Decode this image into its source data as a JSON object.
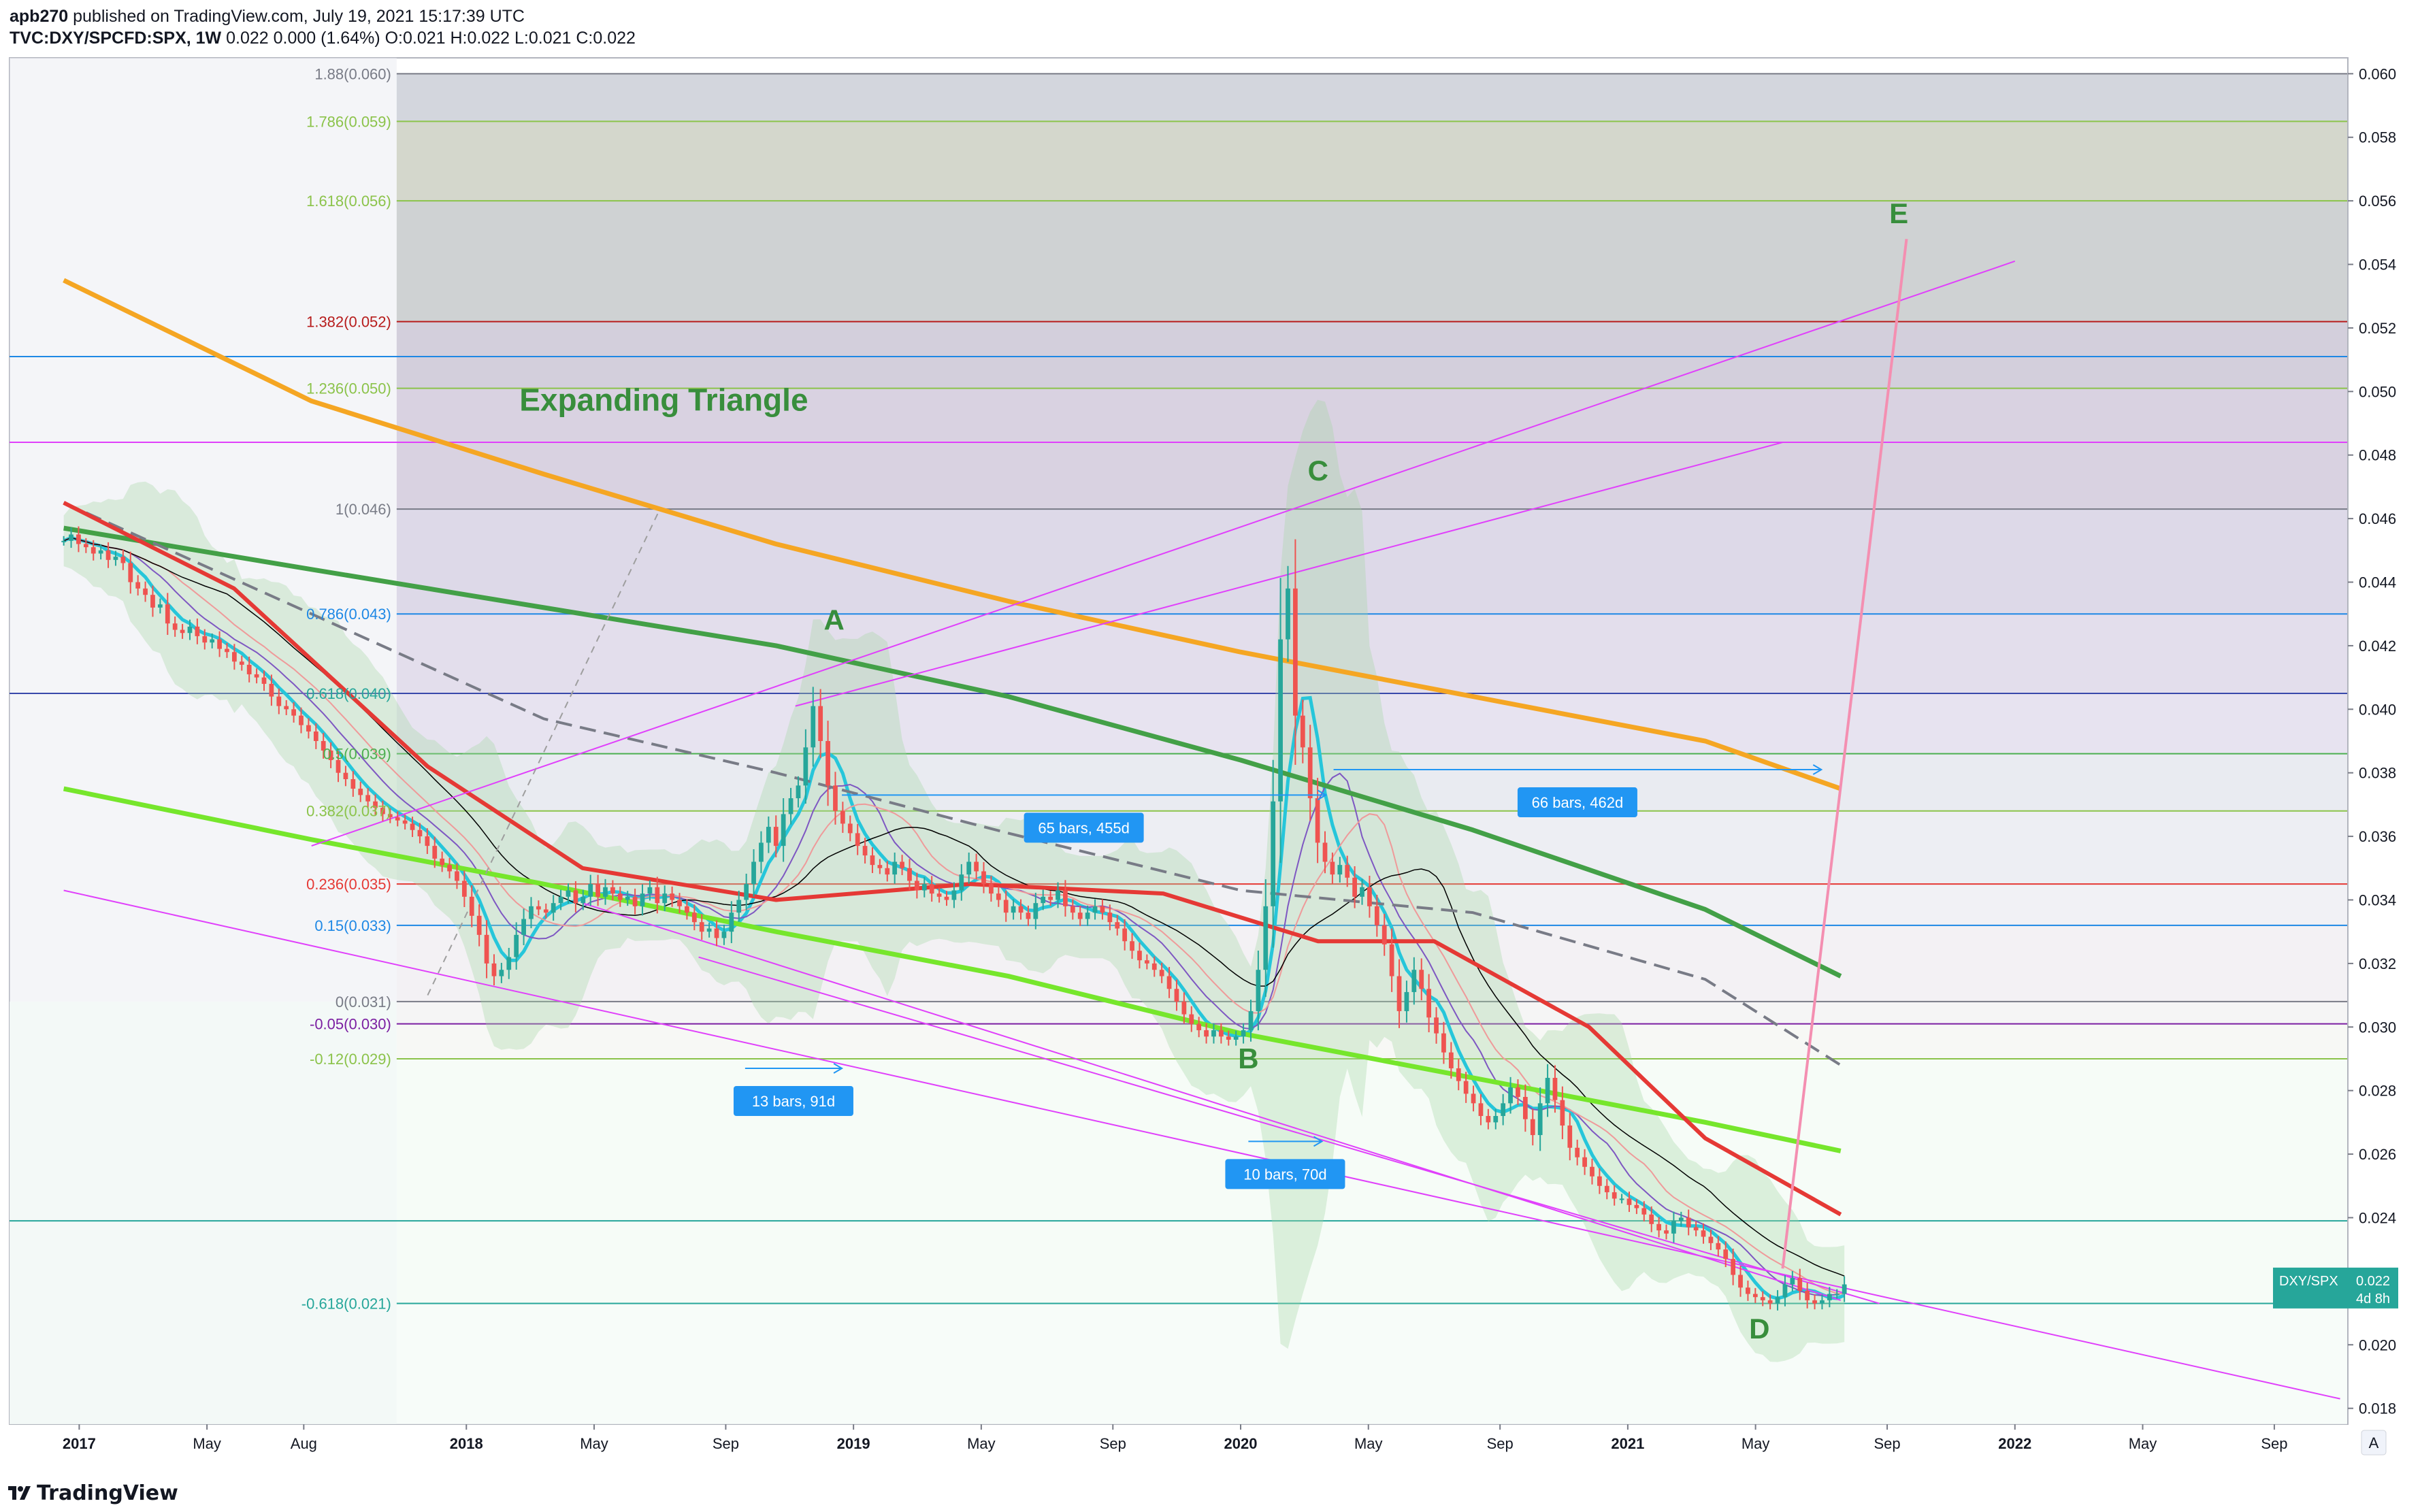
{
  "header": {
    "publisher_line": "apb270 published on TradingView.com, July 19, 2021 15:17:39 UTC",
    "user": "apb270",
    "published_rest": " published on TradingView.com, July 19, 2021 15:17:39 UTC",
    "symbol_line_prefix": "TVC:DXY/SPCFD:SPX, 1W",
    "symbol_line_values": " 0.022 0.000 (1.64%) O:0.021 H:0.022 L:0.021 C:0.022"
  },
  "footer": {
    "brand": "TradingView"
  },
  "colors": {
    "up": "#26a69a",
    "down": "#ef5350",
    "orange_ma": "#f5a623",
    "green_ma": "#43a047",
    "lime_ma": "#76e62c",
    "red_ma": "#e53935",
    "magenta": "#e040fb",
    "label_box": "#2196f3"
  },
  "chart_data": {
    "type": "candlestick",
    "symbol": "DXY/SPX",
    "interval": "1W",
    "price_tag": {
      "value": "0.022",
      "countdown": "4d 8h"
    },
    "ylim": [
      0.0175,
      0.0605
    ],
    "y_ticks": [
      "0.060",
      "0.058",
      "0.056",
      "0.054",
      "0.052",
      "0.050",
      "0.048",
      "0.046",
      "0.044",
      "0.042",
      "0.040",
      "0.038",
      "0.036",
      "0.034",
      "0.032",
      "0.030",
      "0.028",
      "0.026",
      "0.024",
      "0.022",
      "0.020",
      "0.018"
    ],
    "x_ticks": [
      {
        "label": "2017",
        "t": 2017.0
      },
      {
        "label": "May",
        "t": 2017.33
      },
      {
        "label": "Aug",
        "t": 2017.58
      },
      {
        "label": "2018",
        "t": 2018.0
      },
      {
        "label": "May",
        "t": 2018.33
      },
      {
        "label": "Sep",
        "t": 2018.67
      },
      {
        "label": "2019",
        "t": 2019.0
      },
      {
        "label": "May",
        "t": 2019.33
      },
      {
        "label": "Sep",
        "t": 2019.67
      },
      {
        "label": "2020",
        "t": 2020.0
      },
      {
        "label": "May",
        "t": 2020.33
      },
      {
        "label": "Sep",
        "t": 2020.67
      },
      {
        "label": "2021",
        "t": 2021.0
      },
      {
        "label": "May",
        "t": 2021.33
      },
      {
        "label": "Sep",
        "t": 2021.67
      },
      {
        "label": "2022",
        "t": 2022.0
      },
      {
        "label": "May",
        "t": 2022.33
      },
      {
        "label": "Sep",
        "t": 2022.67
      }
    ],
    "fib_levels": [
      {
        "label": "1.88(0.060)",
        "value": 0.06,
        "color": "#787b86"
      },
      {
        "label": "1.786(0.059)",
        "value": 0.0585,
        "color": "#8bc34a"
      },
      {
        "label": "1.618(0.056)",
        "value": 0.056,
        "color": "#8bc34a"
      },
      {
        "label": "1.382(0.052)",
        "value": 0.0522,
        "color": "#b71c1c"
      },
      {
        "label": "1.236(0.050)",
        "value": 0.0501,
        "color": "#8bc34a"
      },
      {
        "label": "1(0.046)",
        "value": 0.0463,
        "color": "#787b86"
      },
      {
        "label": "0.786(0.043)",
        "value": 0.043,
        "color": "#1e88e5"
      },
      {
        "label": "0.618(0.040)",
        "value": 0.0405,
        "color": "#26a69a"
      },
      {
        "label": "0.5(0.039)",
        "value": 0.0386,
        "color": "#4caf50"
      },
      {
        "label": "0.382(0.037)",
        "value": 0.0368,
        "color": "#8bc34a"
      },
      {
        "label": "0.236(0.035)",
        "value": 0.0345,
        "color": "#e53935"
      },
      {
        "label": "0.15(0.033)",
        "value": 0.0332,
        "color": "#1e88e5"
      },
      {
        "label": "0(0.031)",
        "value": 0.0308,
        "color": "#787b86"
      },
      {
        "label": "-0.05(0.030)",
        "value": 0.0301,
        "color": "#7b1fa2"
      },
      {
        "label": "-0.12(0.029)",
        "value": 0.029,
        "color": "#8bc34a"
      },
      {
        "label": "-0.618(0.021)",
        "value": 0.0213,
        "color": "#26a69a"
      }
    ],
    "extra_hlines": [
      {
        "value": 0.0511,
        "color": "#1e88e5"
      },
      {
        "value": 0.0484,
        "color": "#e040fb"
      },
      {
        "value": 0.0405,
        "color": "#3949ab"
      },
      {
        "value": 0.0239,
        "color": "#26a69a"
      }
    ],
    "annotations": [
      {
        "text": "Expanding Triangle",
        "t": 2018.51,
        "y": 0.0494
      },
      {
        "text": "A",
        "t": 2018.95,
        "y": 0.0425
      },
      {
        "text": "B",
        "t": 2020.02,
        "y": 0.0287
      },
      {
        "text": "C",
        "t": 2020.2,
        "y": 0.0472
      },
      {
        "text": "D",
        "t": 2021.34,
        "y": 0.0202
      },
      {
        "text": "E",
        "t": 2021.7,
        "y": 0.0553
      }
    ],
    "range_labels": [
      {
        "text": "13 bars, 91d",
        "t1": 2018.72,
        "t2": 2018.97,
        "y": 0.0287
      },
      {
        "text": "65 bars, 455d",
        "t1": 2018.97,
        "t2": 2020.22,
        "y": 0.0373
      },
      {
        "text": "10 bars, 70d",
        "t1": 2020.02,
        "t2": 2020.21,
        "y": 0.0264
      },
      {
        "text": "66 bars, 462d",
        "t1": 2020.24,
        "t2": 2021.5,
        "y": 0.0381
      }
    ],
    "closes": {
      "start": 2016.96,
      "step_weeks": 1,
      "values": [
        0.0453,
        0.0455,
        0.0452,
        0.0451,
        0.0449,
        0.045,
        0.0447,
        0.0448,
        0.0446,
        0.044,
        0.0438,
        0.0436,
        0.0432,
        0.0433,
        0.0427,
        0.0425,
        0.0424,
        0.0426,
        0.0423,
        0.0421,
        0.0422,
        0.0419,
        0.0418,
        0.0415,
        0.0414,
        0.0411,
        0.041,
        0.0408,
        0.0404,
        0.0401,
        0.04,
        0.0398,
        0.0395,
        0.0393,
        0.039,
        0.0387,
        0.0384,
        0.038,
        0.0378,
        0.0375,
        0.0373,
        0.0371,
        0.0369,
        0.0367,
        0.0366,
        0.0365,
        0.0364,
        0.0362,
        0.036,
        0.0357,
        0.0353,
        0.0351,
        0.0349,
        0.0346,
        0.0341,
        0.0335,
        0.0329,
        0.032,
        0.0316,
        0.0318,
        0.0322,
        0.0329,
        0.0334,
        0.0338,
        0.0337,
        0.0336,
        0.0339,
        0.0341,
        0.0343,
        0.0339,
        0.0341,
        0.0345,
        0.0341,
        0.0344,
        0.0342,
        0.034,
        0.0341,
        0.0338,
        0.0342,
        0.0344,
        0.0339,
        0.0342,
        0.034,
        0.0338,
        0.0336,
        0.0333,
        0.033,
        0.0331,
        0.0328,
        0.033,
        0.0336,
        0.034,
        0.0345,
        0.0352,
        0.0358,
        0.0363,
        0.0357,
        0.0367,
        0.0372,
        0.0376,
        0.0388,
        0.0401,
        0.039,
        0.0376,
        0.0368,
        0.0364,
        0.0361,
        0.0357,
        0.0354,
        0.0351,
        0.035,
        0.0348,
        0.0352,
        0.035,
        0.0346,
        0.0343,
        0.0345,
        0.0342,
        0.0341,
        0.034,
        0.0343,
        0.0348,
        0.0352,
        0.0349,
        0.0345,
        0.0342,
        0.034,
        0.0336,
        0.0338,
        0.0336,
        0.0334,
        0.0339,
        0.0341,
        0.034,
        0.0343,
        0.0338,
        0.0336,
        0.0334,
        0.0336,
        0.0338,
        0.0336,
        0.0333,
        0.0331,
        0.0327,
        0.0324,
        0.0321,
        0.032,
        0.0318,
        0.0316,
        0.0312,
        0.0308,
        0.0304,
        0.0301,
        0.0299,
        0.0297,
        0.0299,
        0.0297,
        0.0296,
        0.0297,
        0.0299,
        0.0305,
        0.0318,
        0.0338,
        0.0371,
        0.0422,
        0.0438,
        0.0398,
        0.0388,
        0.0372,
        0.0358,
        0.0352,
        0.0348,
        0.0351,
        0.0347,
        0.0341,
        0.0344,
        0.0338,
        0.0332,
        0.0326,
        0.0316,
        0.0305,
        0.0311,
        0.0318,
        0.0312,
        0.0303,
        0.0298,
        0.0292,
        0.0287,
        0.0283,
        0.0279,
        0.0276,
        0.0272,
        0.027,
        0.0272,
        0.0276,
        0.0281,
        0.0278,
        0.0271,
        0.0266,
        0.0276,
        0.0284,
        0.0277,
        0.0269,
        0.0262,
        0.0259,
        0.0256,
        0.0253,
        0.025,
        0.0248,
        0.0246,
        0.0246,
        0.0244,
        0.0243,
        0.0241,
        0.0238,
        0.0236,
        0.0235,
        0.0239,
        0.024,
        0.0237,
        0.0236,
        0.0234,
        0.0232,
        0.023,
        0.0227,
        0.0222,
        0.0218,
        0.0216,
        0.0215,
        0.0214,
        0.0213,
        0.0215,
        0.0219,
        0.0221,
        0.0217,
        0.0214,
        0.0213,
        0.0214,
        0.0216,
        0.0216,
        0.0219
      ]
    },
    "moving_averages": [
      {
        "color": "#f5a623",
        "width": 7,
        "points": [
          [
            2016.96,
            0.0535
          ],
          [
            2017.6,
            0.0497
          ],
          [
            2018.2,
            0.0474
          ],
          [
            2018.8,
            0.0452
          ],
          [
            2019.4,
            0.0434
          ],
          [
            2020.0,
            0.0418
          ],
          [
            2020.6,
            0.0404
          ],
          [
            2021.2,
            0.039
          ],
          [
            2021.55,
            0.0375
          ]
        ]
      },
      {
        "color": "#43a047",
        "width": 7,
        "points": [
          [
            2016.96,
            0.0457
          ],
          [
            2017.6,
            0.0444
          ],
          [
            2018.2,
            0.0432
          ],
          [
            2018.8,
            0.042
          ],
          [
            2019.4,
            0.0404
          ],
          [
            2020.0,
            0.0384
          ],
          [
            2020.6,
            0.0362
          ],
          [
            2021.2,
            0.0337
          ],
          [
            2021.55,
            0.0316
          ]
        ]
      },
      {
        "color": "#76e62c",
        "width": 7,
        "points": [
          [
            2016.96,
            0.0375
          ],
          [
            2017.6,
            0.0359
          ],
          [
            2018.2,
            0.0345
          ],
          [
            2018.8,
            0.033
          ],
          [
            2019.4,
            0.0316
          ],
          [
            2020.0,
            0.0298
          ],
          [
            2020.6,
            0.0284
          ],
          [
            2021.2,
            0.027
          ],
          [
            2021.55,
            0.0261
          ]
        ]
      },
      {
        "color": "#787b86",
        "width": 4,
        "dash": "24 12",
        "points": [
          [
            2016.96,
            0.0465
          ],
          [
            2017.6,
            0.043
          ],
          [
            2018.2,
            0.0397
          ],
          [
            2018.8,
            0.038
          ],
          [
            2019.4,
            0.0361
          ],
          [
            2020.0,
            0.0343
          ],
          [
            2020.6,
            0.0336
          ],
          [
            2021.2,
            0.0315
          ],
          [
            2021.55,
            0.0288
          ]
        ]
      },
      {
        "color": "#e53935",
        "width": 6,
        "points": [
          [
            2016.96,
            0.0465
          ],
          [
            2017.4,
            0.0438
          ],
          [
            2017.9,
            0.0382
          ],
          [
            2018.3,
            0.035
          ],
          [
            2018.8,
            0.034
          ],
          [
            2019.3,
            0.0345
          ],
          [
            2019.8,
            0.0342
          ],
          [
            2020.2,
            0.0327
          ],
          [
            2020.5,
            0.0327
          ],
          [
            2020.9,
            0.03
          ],
          [
            2021.2,
            0.0265
          ],
          [
            2021.55,
            0.0241
          ]
        ]
      }
    ],
    "trendlines": [
      {
        "color": "#e040fb",
        "width": 2,
        "points": [
          [
            2016.96,
            0.0343
          ],
          [
            2022.84,
            0.0183
          ]
        ]
      },
      {
        "color": "#e040fb",
        "width": 2,
        "points": [
          [
            2018.6,
            0.0322
          ],
          [
            2021.65,
            0.0213
          ]
        ]
      },
      {
        "color": "#e040fb",
        "width": 2,
        "points": [
          [
            2018.3,
            0.0339
          ],
          [
            2021.55,
            0.0214
          ]
        ]
      },
      {
        "color": "#e040fb",
        "width": 2,
        "points": [
          [
            2017.6,
            0.0357
          ],
          [
            2022.0,
            0.0541
          ]
        ]
      },
      {
        "color": "#e040fb",
        "width": 2,
        "points": [
          [
            2018.85,
            0.0401
          ],
          [
            2021.4,
            0.0484
          ]
        ]
      },
      {
        "color": "#f48fb1",
        "width": 4,
        "points": [
          [
            2021.4,
            0.0224
          ],
          [
            2021.72,
            0.0548
          ]
        ]
      },
      {
        "color": "#9e9e9e",
        "width": 2,
        "dash": "10 8",
        "points": [
          [
            2017.9,
            0.031
          ],
          [
            2018.5,
            0.0463
          ]
        ]
      }
    ]
  }
}
